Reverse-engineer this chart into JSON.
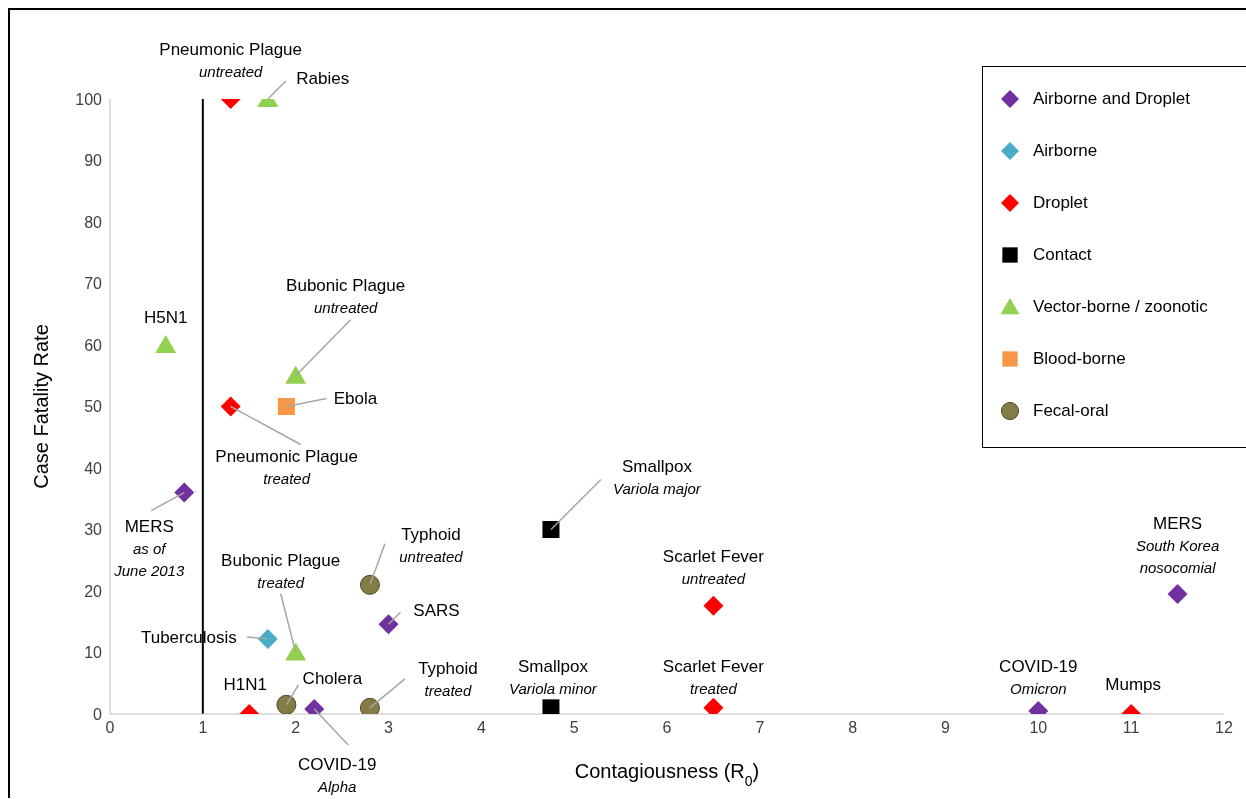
{
  "chart_data": {
    "type": "scatter",
    "xlabel": "Contagiousness (R$_{0}$)",
    "ylabel": "Case Fatality Rate",
    "xlim": [
      0,
      12
    ],
    "xticks": [
      0,
      1,
      2,
      3,
      4,
      5,
      6,
      7,
      8,
      9,
      10,
      11,
      12
    ],
    "ylim": [
      0,
      100
    ],
    "yticks": [
      0,
      10,
      20,
      30,
      40,
      50,
      60,
      70,
      80,
      90,
      100
    ],
    "grid": false,
    "legend": "top right",
    "series": [
      {
        "name": "Airborne and Droplet",
        "color": "#7030a0",
        "marker": "diamond",
        "x": [
          0.8,
          3,
          2.2,
          10,
          11.5
        ],
        "values": [
          36,
          14.6,
          0.8,
          0.5,
          19.5
        ]
      },
      {
        "name": "Airborne",
        "color": "#4bacc6",
        "marker": "diamond",
        "x": [
          1.7
        ],
        "values": [
          12.2
        ]
      },
      {
        "name": "Droplet",
        "color": "#ff0000",
        "marker": "diamond",
        "x": [
          1.3,
          1.3,
          1.5,
          6.5,
          6.5,
          11
        ],
        "values": [
          100,
          50,
          0,
          17.6,
          1,
          0
        ]
      },
      {
        "name": "Contact",
        "color": "#000000",
        "marker": "square",
        "x": [
          4.75,
          4.75
        ],
        "values": [
          30,
          1
        ]
      },
      {
        "name": "Vector-borne / zoonotic",
        "color": "#92d050",
        "marker": "triangle",
        "x": [
          1.7,
          0.6,
          2,
          2
        ],
        "values": [
          100,
          60,
          55,
          10
        ]
      },
      {
        "name": "Blood-borne",
        "color": "#f79646",
        "marker": "square",
        "x": [
          1.9
        ],
        "values": [
          50
        ]
      },
      {
        "name": "Fecal-oral",
        "color": "#857b45",
        "marker": "circle",
        "x": [
          2.8,
          2.8,
          1.9
        ],
        "values": [
          21,
          1,
          1.5
        ]
      }
    ],
    "ref_lines": [
      {
        "axis": "x",
        "value": 1,
        "color": "#000000"
      }
    ],
    "annotations": [
      {
        "text": "Pneumonic Plague\nuntreated",
        "x": 1.3,
        "y": 100
      },
      {
        "text": "Rabies",
        "x": 1.7,
        "y": 100
      },
      {
        "text": "H5N1",
        "x": 0.6,
        "y": 60
      },
      {
        "text": "Bubonic Plague\nuntreated",
        "x": 2,
        "y": 55
      },
      {
        "text": "Ebola",
        "x": 1.9,
        "y": 50
      },
      {
        "text": "Pneumonic Plague\ntreated",
        "x": 1.3,
        "y": 50
      },
      {
        "text": "MERS\nas of\nJune 2013",
        "x": 0.8,
        "y": 36
      },
      {
        "text": "Smallpox\nVariola major",
        "x": 4.75,
        "y": 30
      },
      {
        "text": "Typhoid\nuntreated",
        "x": 2.8,
        "y": 21
      },
      {
        "text": "Bubonic Plague\ntreated",
        "x": 2,
        "y": 10
      },
      {
        "text": "Scarlet Fever\nuntreated",
        "x": 6.5,
        "y": 17.6
      },
      {
        "text": "MERS\nSouth Korea\nnosocomial",
        "x": 11.5,
        "y": 19.5
      },
      {
        "text": "SARS",
        "x": 3,
        "y": 14.6
      },
      {
        "text": "Tuberculosis",
        "x": 1.7,
        "y": 12.2
      },
      {
        "text": "Scarlet Fever\ntreated",
        "x": 6.5,
        "y": 1
      },
      {
        "text": "Smallpox\nVariola minor",
        "x": 4.75,
        "y": 1
      },
      {
        "text": "Typhoid\ntreated",
        "x": 2.8,
        "y": 1
      },
      {
        "text": "Cholera",
        "x": 1.9,
        "y": 1.5
      },
      {
        "text": "H1N1",
        "x": 1.5,
        "y": 0
      },
      {
        "text": "COVID-19\nAlpha",
        "x": 2.2,
        "y": 0.8
      },
      {
        "text": "COVID-19\nOmicron",
        "x": 10,
        "y": 0.5
      },
      {
        "text": "Mumps",
        "x": 11,
        "y": 0
      }
    ]
  }
}
